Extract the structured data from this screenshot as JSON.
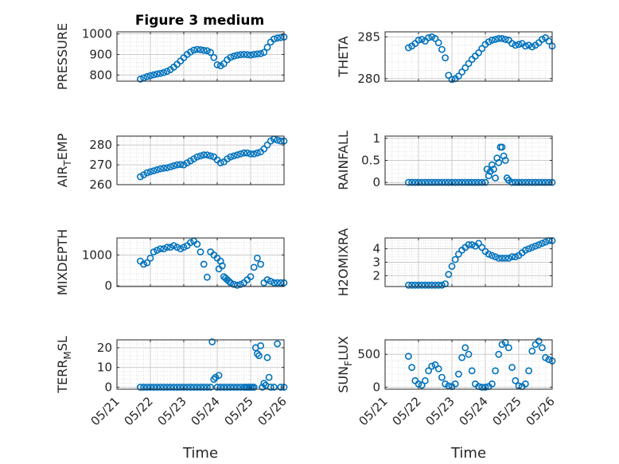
{
  "figure": {
    "title": "Figure 3 medium",
    "xlabel": "Time",
    "marker_color": "#0072BD",
    "grid": "on",
    "minor_grid": "on"
  },
  "x_axis": {
    "ticks": [
      0,
      1,
      2,
      3,
      4,
      5
    ],
    "tick_labels": [
      "05/21",
      "05/22",
      "05/23",
      "05/24",
      "05/25",
      "05/26"
    ],
    "range": [
      0,
      5
    ]
  },
  "chart_data": [
    {
      "type": "scatter",
      "id": "pressure",
      "ylabel": "PRESSURE",
      "ylim": [
        770,
        1010
      ],
      "yticks": [
        800,
        900,
        1000
      ],
      "ytick_labels": [
        "800",
        "900",
        "1000"
      ],
      "x": [
        0.7,
        0.8,
        0.9,
        1.0,
        1.1,
        1.2,
        1.3,
        1.4,
        1.5,
        1.6,
        1.7,
        1.8,
        1.9,
        2.0,
        2.1,
        2.2,
        2.3,
        2.4,
        2.5,
        2.6,
        2.7,
        2.8,
        2.9,
        3.0,
        3.1,
        3.2,
        3.3,
        3.4,
        3.5,
        3.6,
        3.7,
        3.8,
        3.9,
        4.0,
        4.1,
        4.2,
        4.3,
        4.4,
        4.5,
        4.6,
        4.7,
        4.8,
        4.9,
        5.0
      ],
      "y": [
        780,
        786,
        792,
        797,
        801,
        805,
        808,
        812,
        818,
        826,
        838,
        852,
        868,
        884,
        900,
        912,
        921,
        925,
        923,
        920,
        918,
        910,
        885,
        850,
        845,
        855,
        874,
        886,
        892,
        896,
        899,
        900,
        899,
        897,
        900,
        902,
        904,
        910,
        935,
        960,
        975,
        980,
        982,
        985
      ]
    },
    {
      "type": "scatter",
      "id": "theta",
      "ylabel": "THETA",
      "ylim": [
        279.7,
        285.6
      ],
      "yticks": [
        280,
        285
      ],
      "ytick_labels": [
        "280",
        "285"
      ],
      "x": [
        0.7,
        0.8,
        0.9,
        1.0,
        1.1,
        1.2,
        1.3,
        1.4,
        1.5,
        1.6,
        1.7,
        1.8,
        1.9,
        2.0,
        2.1,
        2.2,
        2.3,
        2.4,
        2.5,
        2.6,
        2.7,
        2.8,
        2.9,
        3.0,
        3.1,
        3.2,
        3.3,
        3.4,
        3.5,
        3.6,
        3.7,
        3.8,
        3.9,
        4.0,
        4.1,
        4.2,
        4.3,
        4.4,
        4.5,
        4.6,
        4.7,
        4.8,
        4.9,
        5.0
      ],
      "y": [
        283.7,
        283.9,
        284.2,
        284.6,
        284.7,
        284.5,
        284.9,
        285.0,
        284.8,
        284.3,
        283.5,
        282.5,
        280.4,
        279.9,
        280.0,
        280.3,
        280.8,
        281.3,
        281.8,
        282.3,
        282.7,
        283.1,
        283.6,
        284.1,
        284.4,
        284.6,
        284.7,
        284.8,
        284.8,
        284.7,
        284.6,
        284.2,
        284.0,
        284.1,
        284.2,
        283.9,
        284.0,
        283.8,
        284.0,
        284.3,
        284.7,
        284.9,
        284.5,
        283.9
      ]
    },
    {
      "type": "scatter",
      "id": "air_temp",
      "ylabel": "AIR",
      "ylabel_sub": "T",
      "ylabel_suffix": "EMP",
      "ylim": [
        260,
        284.5
      ],
      "yticks": [
        260,
        270,
        280
      ],
      "ytick_labels": [
        "260",
        "270",
        "280"
      ],
      "x": [
        0.7,
        0.8,
        0.9,
        1.0,
        1.1,
        1.2,
        1.3,
        1.4,
        1.5,
        1.6,
        1.7,
        1.8,
        1.9,
        2.0,
        2.1,
        2.2,
        2.3,
        2.4,
        2.5,
        2.6,
        2.7,
        2.8,
        2.9,
        3.0,
        3.1,
        3.2,
        3.3,
        3.4,
        3.5,
        3.6,
        3.7,
        3.8,
        3.9,
        4.0,
        4.1,
        4.2,
        4.3,
        4.4,
        4.5,
        4.6,
        4.7,
        4.8,
        4.9,
        5.0
      ],
      "y": [
        264,
        265,
        266,
        266.5,
        267,
        267.5,
        268,
        268.3,
        268.5,
        269,
        269.5,
        270,
        270.2,
        270,
        271,
        272,
        273,
        274,
        274.5,
        275,
        275,
        274.5,
        274,
        272.5,
        271,
        271.5,
        273,
        274,
        274.5,
        275,
        275.5,
        276,
        276,
        275.5,
        275.5,
        276,
        276.5,
        278,
        280,
        282,
        283,
        282.5,
        282,
        282
      ]
    },
    {
      "type": "scatter",
      "id": "rainfall",
      "ylabel": "RAINFALL",
      "ylim": [
        -0.05,
        1.05
      ],
      "yticks": [
        0,
        0.5,
        1
      ],
      "ytick_labels": [
        "0",
        "0.5",
        "1"
      ],
      "x": [
        0.7,
        0.8,
        0.9,
        1.0,
        1.1,
        1.2,
        1.3,
        1.4,
        1.5,
        1.6,
        1.7,
        1.8,
        1.9,
        2.0,
        2.1,
        2.2,
        2.3,
        2.4,
        2.5,
        2.6,
        2.7,
        2.8,
        2.9,
        3.0,
        3.05,
        3.1,
        3.15,
        3.2,
        3.25,
        3.3,
        3.35,
        3.4,
        3.45,
        3.5,
        3.55,
        3.6,
        3.65,
        3.7,
        3.8,
        3.9,
        4.0,
        4.1,
        4.2,
        4.3,
        4.4,
        4.5,
        4.6,
        4.7,
        4.8,
        4.9,
        5.0
      ],
      "y": [
        0,
        0,
        0,
        0,
        0,
        0,
        0,
        0,
        0,
        0,
        0,
        0,
        0,
        0,
        0,
        0,
        0,
        0,
        0,
        0,
        0,
        0,
        0,
        0,
        0.3,
        0.15,
        0.25,
        0.4,
        0.3,
        0.1,
        0.55,
        0.45,
        0.8,
        0.8,
        0.6,
        0.5,
        0.1,
        0.05,
        0,
        0,
        0,
        0,
        0,
        0,
        0,
        0,
        0,
        0,
        0,
        0,
        0
      ]
    },
    {
      "type": "scatter",
      "id": "mixdepth",
      "ylabel": "MIXDEPTH",
      "ylim": [
        -20,
        1550
      ],
      "yticks": [
        0,
        1000
      ],
      "ytick_labels": [
        "0",
        "1000"
      ],
      "x": [
        0.7,
        0.8,
        0.9,
        1.0,
        1.1,
        1.2,
        1.3,
        1.4,
        1.5,
        1.6,
        1.7,
        1.8,
        1.9,
        2.0,
        2.1,
        2.2,
        2.3,
        2.4,
        2.5,
        2.6,
        2.7,
        2.8,
        2.9,
        3.0,
        3.05,
        3.1,
        3.15,
        3.2,
        3.25,
        3.3,
        3.35,
        3.4,
        3.5,
        3.6,
        3.7,
        3.8,
        3.9,
        4.0,
        4.1,
        4.2,
        4.3,
        4.4,
        4.5,
        4.6,
        4.7,
        4.8,
        4.9,
        5.0
      ],
      "y": [
        800,
        700,
        750,
        900,
        1100,
        1150,
        1200,
        1200,
        1250,
        1250,
        1300,
        1250,
        1200,
        1250,
        1300,
        1400,
        1450,
        1350,
        1100,
        700,
        280,
        1100,
        1000,
        900,
        550,
        800,
        650,
        300,
        250,
        200,
        150,
        100,
        50,
        20,
        50,
        100,
        200,
        300,
        600,
        900,
        700,
        100,
        200,
        150,
        100,
        100,
        100,
        100
      ]
    },
    {
      "type": "scatter",
      "id": "h2omixra",
      "ylabel": "H2OMIXRA",
      "ylim": [
        1.2,
        4.8
      ],
      "yticks": [
        2,
        3,
        4
      ],
      "ytick_labels": [
        "2",
        "3",
        "4"
      ],
      "x": [
        0.7,
        0.8,
        0.9,
        1.0,
        1.1,
        1.2,
        1.3,
        1.4,
        1.5,
        1.6,
        1.7,
        1.8,
        1.9,
        2.0,
        2.1,
        2.2,
        2.3,
        2.4,
        2.5,
        2.6,
        2.7,
        2.8,
        2.9,
        3.0,
        3.1,
        3.2,
        3.3,
        3.4,
        3.5,
        3.6,
        3.7,
        3.8,
        3.9,
        4.0,
        4.1,
        4.2,
        4.3,
        4.4,
        4.5,
        4.6,
        4.7,
        4.8,
        4.9,
        5.0
      ],
      "y": [
        1.3,
        1.3,
        1.3,
        1.3,
        1.3,
        1.3,
        1.3,
        1.3,
        1.3,
        1.3,
        1.3,
        1.4,
        2.1,
        2.7,
        3.2,
        3.6,
        3.9,
        4.1,
        4.3,
        4.3,
        4.2,
        4.4,
        4.1,
        3.8,
        3.6,
        3.5,
        3.4,
        3.3,
        3.3,
        3.3,
        3.3,
        3.4,
        3.4,
        3.5,
        3.7,
        3.9,
        4.0,
        4.1,
        4.2,
        4.3,
        4.4,
        4.5,
        4.6,
        4.6
      ]
    },
    {
      "type": "scatter",
      "id": "terr_msl",
      "ylabel": "TERR",
      "ylabel_sub": "M",
      "ylabel_suffix": "SL",
      "ylim": [
        -1,
        24
      ],
      "yticks": [
        0,
        10,
        20
      ],
      "ytick_labels": [
        "0",
        "10",
        "20"
      ],
      "x": [
        0.7,
        0.8,
        0.9,
        1.0,
        1.1,
        1.2,
        1.3,
        1.4,
        1.5,
        1.6,
        1.7,
        1.8,
        1.9,
        2.0,
        2.1,
        2.2,
        2.3,
        2.4,
        2.5,
        2.6,
        2.7,
        2.8,
        2.85,
        2.9,
        2.95,
        3.0,
        3.05,
        3.1,
        3.2,
        3.3,
        3.4,
        3.5,
        3.6,
        3.7,
        3.8,
        3.85,
        3.9,
        3.95,
        4.0,
        4.05,
        4.1,
        4.15,
        4.2,
        4.25,
        4.3,
        4.35,
        4.4,
        4.45,
        4.5,
        4.55,
        4.6,
        4.7,
        4.8,
        4.9,
        5.0
      ],
      "y": [
        0,
        0,
        0,
        0,
        0,
        0,
        0,
        0,
        0,
        0,
        0,
        0,
        0,
        0,
        0,
        0,
        0,
        0,
        0,
        0,
        0,
        0,
        23,
        4,
        5,
        0,
        6,
        0,
        0,
        0,
        0,
        0,
        0,
        0,
        0,
        0,
        0,
        0,
        0,
        0,
        0,
        20,
        17,
        16,
        21,
        0,
        2,
        1,
        15,
        5,
        0,
        0,
        22,
        0,
        0
      ]
    },
    {
      "type": "scatter",
      "id": "sun_flux",
      "ylabel": "SUN",
      "ylabel_sub": "F",
      "ylabel_suffix": "LUX",
      "ylim": [
        -30,
        720
      ],
      "yticks": [
        0,
        500
      ],
      "ytick_labels": [
        "0",
        "500"
      ],
      "x": [
        0.7,
        0.8,
        0.9,
        1.0,
        1.1,
        1.2,
        1.3,
        1.4,
        1.5,
        1.6,
        1.7,
        1.8,
        1.9,
        2.0,
        2.1,
        2.2,
        2.3,
        2.4,
        2.5,
        2.6,
        2.7,
        2.8,
        2.9,
        3.0,
        3.1,
        3.2,
        3.3,
        3.4,
        3.5,
        3.6,
        3.7,
        3.8,
        3.9,
        4.0,
        4.1,
        4.2,
        4.3,
        4.4,
        4.5,
        4.6,
        4.7,
        4.8,
        4.9,
        5.0
      ],
      "y": [
        470,
        300,
        100,
        50,
        30,
        100,
        250,
        320,
        340,
        280,
        150,
        50,
        20,
        10,
        50,
        200,
        450,
        600,
        500,
        250,
        50,
        10,
        0,
        0,
        10,
        50,
        250,
        500,
        650,
        680,
        600,
        300,
        100,
        20,
        10,
        50,
        250,
        550,
        650,
        700,
        600,
        450,
        420,
        400
      ]
    }
  ]
}
